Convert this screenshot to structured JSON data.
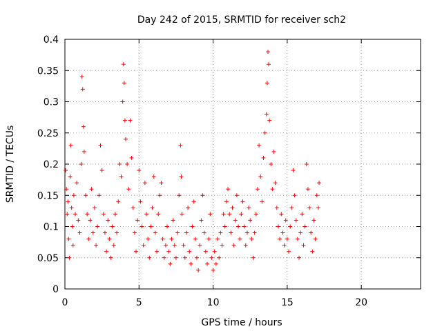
{
  "chart_data": {
    "type": "scatter",
    "title": "Day 242 of 2015, SRMTID for receiver sch2",
    "xlabel": "GPS time / hours",
    "ylabel": "SRMTID / TECUs",
    "xlim": [
      0,
      24
    ],
    "ylim": [
      0,
      0.4
    ],
    "xticks": [
      0,
      5,
      10,
      15,
      20
    ],
    "xtick_labels": [
      "0",
      "5",
      "10",
      "15",
      "20"
    ],
    "yticks": [
      0,
      0.05,
      0.1,
      0.15,
      0.2,
      0.25,
      0.3,
      0.35,
      0.4
    ],
    "ytick_labels": [
      "0",
      "0.05",
      "0.1",
      "0.15",
      "0.2",
      "0.25",
      "0.3",
      "0.35",
      "0.4"
    ],
    "grid": true,
    "marker": "+",
    "color": "#ff0000",
    "series": [
      {
        "name": "SRMTID",
        "points": [
          [
            0.05,
            0.19
          ],
          [
            0.1,
            0.16
          ],
          [
            0.15,
            0.12
          ],
          [
            0.2,
            0.14
          ],
          [
            0.25,
            0.08
          ],
          [
            0.3,
            0.05
          ],
          [
            0.35,
            0.18
          ],
          [
            0.4,
            0.23
          ],
          [
            0.45,
            0.13
          ],
          [
            0.5,
            0.1
          ],
          [
            0.55,
            0.07
          ],
          [
            0.6,
            0.15
          ],
          [
            0.7,
            0.12
          ],
          [
            0.8,
            0.17
          ],
          [
            0.9,
            0.11
          ],
          [
            1.0,
            0.09
          ],
          [
            1.1,
            0.2
          ],
          [
            1.15,
            0.34
          ],
          [
            1.2,
            0.32
          ],
          [
            1.25,
            0.26
          ],
          [
            1.3,
            0.22
          ],
          [
            1.4,
            0.15
          ],
          [
            1.5,
            0.12
          ],
          [
            1.6,
            0.08
          ],
          [
            1.7,
            0.11
          ],
          [
            1.8,
            0.16
          ],
          [
            1.9,
            0.09
          ],
          [
            2.0,
            0.13
          ],
          [
            2.1,
            0.07
          ],
          [
            2.2,
            0.1
          ],
          [
            2.3,
            0.15
          ],
          [
            2.4,
            0.23
          ],
          [
            2.5,
            0.19
          ],
          [
            2.6,
            0.12
          ],
          [
            2.7,
            0.09
          ],
          [
            2.8,
            0.06
          ],
          [
            2.9,
            0.11
          ],
          [
            3.0,
            0.08
          ],
          [
            3.1,
            0.05
          ],
          [
            3.2,
            0.1
          ],
          [
            3.3,
            0.07
          ],
          [
            3.4,
            0.12
          ],
          [
            3.5,
            0.09
          ],
          [
            3.6,
            0.14
          ],
          [
            3.7,
            0.2
          ],
          [
            3.8,
            0.18
          ],
          [
            3.9,
            0.3
          ],
          [
            3.95,
            0.36
          ],
          [
            4.0,
            0.33
          ],
          [
            4.05,
            0.27
          ],
          [
            4.1,
            0.24
          ],
          [
            4.2,
            0.2
          ],
          [
            4.3,
            0.16
          ],
          [
            4.4,
            0.27
          ],
          [
            4.5,
            0.21
          ],
          [
            4.6,
            0.13
          ],
          [
            4.7,
            0.09
          ],
          [
            4.8,
            0.06
          ],
          [
            4.9,
            0.11
          ],
          [
            5.0,
            0.19
          ],
          [
            5.1,
            0.14
          ],
          [
            5.2,
            0.1
          ],
          [
            5.3,
            0.07
          ],
          [
            5.4,
            0.17
          ],
          [
            5.5,
            0.12
          ],
          [
            5.6,
            0.08
          ],
          [
            5.7,
            0.05
          ],
          [
            5.8,
            0.1
          ],
          [
            5.9,
            0.13
          ],
          [
            6.0,
            0.18
          ],
          [
            6.1,
            0.09
          ],
          [
            6.2,
            0.06
          ],
          [
            6.3,
            0.12
          ],
          [
            6.4,
            0.15
          ],
          [
            6.5,
            0.17
          ],
          [
            6.6,
            0.08
          ],
          [
            6.7,
            0.05
          ],
          [
            6.8,
            0.07
          ],
          [
            6.9,
            0.1
          ],
          [
            7.0,
            0.06
          ],
          [
            7.1,
            0.04
          ],
          [
            7.2,
            0.08
          ],
          [
            7.3,
            0.11
          ],
          [
            7.4,
            0.07
          ],
          [
            7.5,
            0.05
          ],
          [
            7.6,
            0.09
          ],
          [
            7.7,
            0.15
          ],
          [
            7.8,
            0.23
          ],
          [
            7.85,
            0.18
          ],
          [
            7.9,
            0.12
          ],
          [
            8.0,
            0.07
          ],
          [
            8.1,
            0.05
          ],
          [
            8.2,
            0.09
          ],
          [
            8.3,
            0.13
          ],
          [
            8.4,
            0.06
          ],
          [
            8.5,
            0.04
          ],
          [
            8.6,
            0.1
          ],
          [
            8.7,
            0.14
          ],
          [
            8.8,
            0.08
          ],
          [
            8.9,
            0.05
          ],
          [
            9.0,
            0.03
          ],
          [
            9.1,
            0.07
          ],
          [
            9.2,
            0.11
          ],
          [
            9.3,
            0.15
          ],
          [
            9.4,
            0.09
          ],
          [
            9.5,
            0.06
          ],
          [
            9.6,
            0.04
          ],
          [
            9.7,
            0.08
          ],
          [
            9.8,
            0.12
          ],
          [
            9.9,
            0.05
          ],
          [
            10.0,
            0.03
          ],
          [
            10.1,
            0.06
          ],
          [
            10.2,
            0.04
          ],
          [
            10.3,
            0.08
          ],
          [
            10.4,
            0.05
          ],
          [
            10.5,
            0.09
          ],
          [
            10.6,
            0.07
          ],
          [
            10.7,
            0.12
          ],
          [
            10.8,
            0.1
          ],
          [
            10.9,
            0.14
          ],
          [
            11.0,
            0.16
          ],
          [
            11.1,
            0.12
          ],
          [
            11.2,
            0.09
          ],
          [
            11.3,
            0.13
          ],
          [
            11.4,
            0.07
          ],
          [
            11.5,
            0.11
          ],
          [
            11.6,
            0.15
          ],
          [
            11.7,
            0.1
          ],
          [
            11.8,
            0.08
          ],
          [
            11.9,
            0.12
          ],
          [
            12.0,
            0.14
          ],
          [
            12.1,
            0.1
          ],
          [
            12.2,
            0.07
          ],
          [
            12.3,
            0.09
          ],
          [
            12.4,
            0.13
          ],
          [
            12.5,
            0.11
          ],
          [
            12.6,
            0.08
          ],
          [
            12.7,
            0.05
          ],
          [
            12.8,
            0.09
          ],
          [
            12.9,
            0.12
          ],
          [
            13.0,
            0.16
          ],
          [
            13.1,
            0.23
          ],
          [
            13.2,
            0.18
          ],
          [
            13.3,
            0.14
          ],
          [
            13.4,
            0.21
          ],
          [
            13.5,
            0.25
          ],
          [
            13.6,
            0.28
          ],
          [
            13.65,
            0.33
          ],
          [
            13.7,
            0.38
          ],
          [
            13.75,
            0.36
          ],
          [
            13.8,
            0.27
          ],
          [
            13.9,
            0.2
          ],
          [
            14.0,
            0.16
          ],
          [
            14.1,
            0.22
          ],
          [
            14.2,
            0.17
          ],
          [
            14.3,
            0.13
          ],
          [
            14.4,
            0.1
          ],
          [
            14.5,
            0.08
          ],
          [
            14.6,
            0.12
          ],
          [
            14.7,
            0.09
          ],
          [
            14.8,
            0.07
          ],
          [
            14.9,
            0.11
          ],
          [
            15.0,
            0.08
          ],
          [
            15.1,
            0.06
          ],
          [
            15.2,
            0.1
          ],
          [
            15.3,
            0.13
          ],
          [
            15.4,
            0.19
          ],
          [
            15.5,
            0.15
          ],
          [
            15.6,
            0.11
          ],
          [
            15.7,
            0.08
          ],
          [
            15.8,
            0.05
          ],
          [
            15.9,
            0.09
          ],
          [
            16.0,
            0.12
          ],
          [
            16.1,
            0.07
          ],
          [
            16.2,
            0.1
          ],
          [
            16.3,
            0.2
          ],
          [
            16.4,
            0.16
          ],
          [
            16.5,
            0.13
          ],
          [
            16.6,
            0.09
          ],
          [
            16.7,
            0.06
          ],
          [
            16.8,
            0.11
          ],
          [
            16.9,
            0.08
          ],
          [
            17.0,
            0.15
          ],
          [
            17.1,
            0.13
          ],
          [
            17.15,
            0.17
          ]
        ]
      }
    ]
  }
}
